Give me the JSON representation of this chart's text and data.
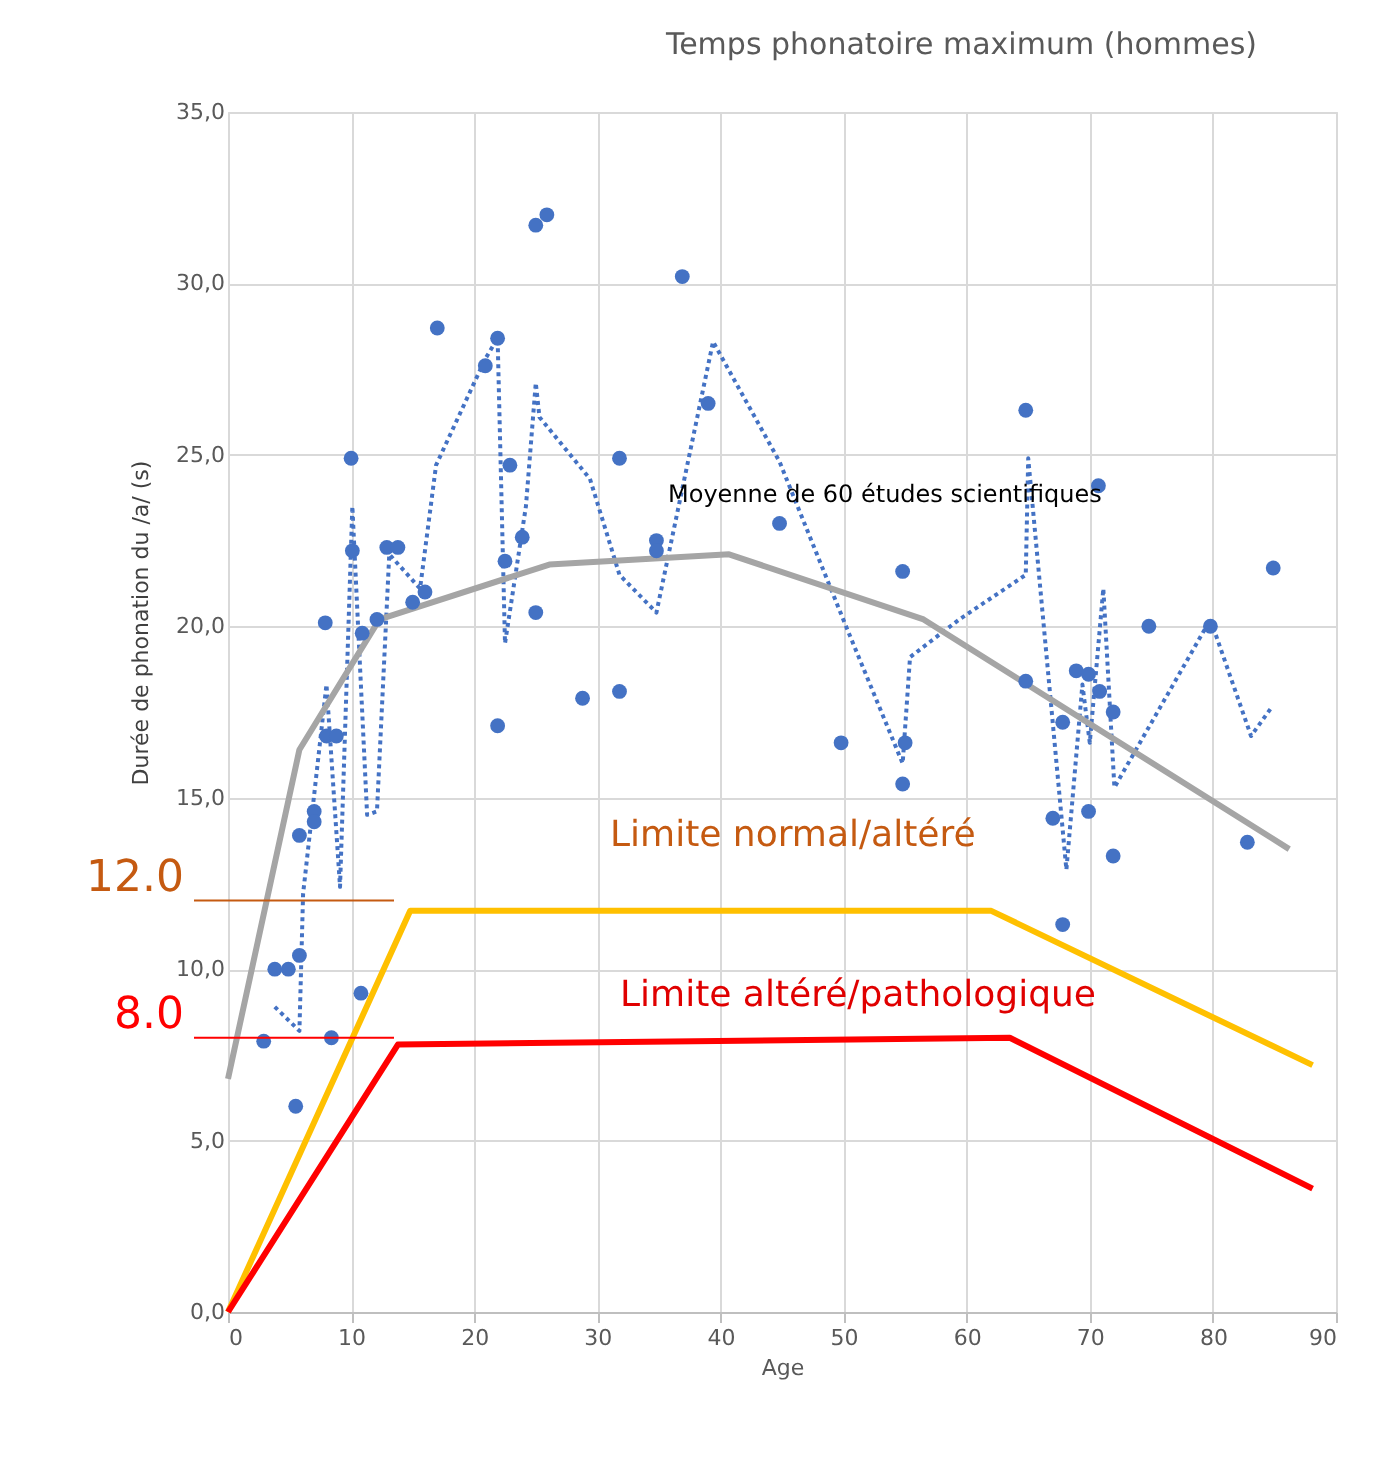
{
  "chart_data": {
    "type": "scatter",
    "title": "Temps phonatoire maximum (hommes)",
    "xlabel": "Age",
    "ylabel": "Durée de phonation du /a/ (s)",
    "series": [
      {
        "color": "#4472c4",
        "marker": "circle",
        "x": [
          25.0,
          25.9,
          17.0,
          21.9,
          20.9,
          10.0,
          22.9,
          23.9,
          10.1,
          22.5,
          12.9,
          13.8,
          16.0,
          15.0,
          12.1,
          10.9,
          7.9,
          25.0,
          28.8,
          21.9,
          8.0,
          8.8,
          7.0,
          7.0,
          5.8,
          5.8,
          3.8,
          4.9,
          10.8,
          2.9,
          8.4,
          5.5,
          36.9,
          39.0,
          31.8,
          44.8,
          34.8,
          34.8,
          54.8,
          31.8,
          49.8,
          55.0,
          54.8,
          64.8,
          70.7,
          84.9,
          74.8,
          79.8,
          64.8,
          68.9,
          69.9,
          70.8,
          71.9,
          67.8,
          67.0,
          69.9,
          71.9,
          82.8,
          67.8
        ],
        "values": [
          31.7,
          32.0,
          28.7,
          28.4,
          27.6,
          24.9,
          24.7,
          22.6,
          22.2,
          21.9,
          22.3,
          22.3,
          21.0,
          20.7,
          20.2,
          19.8,
          20.1,
          20.4,
          17.9,
          17.1,
          16.8,
          16.8,
          14.6,
          14.3,
          13.9,
          10.4,
          10.0,
          10.0,
          9.3,
          7.9,
          8.0,
          6.0,
          30.2,
          26.5,
          24.9,
          23.0,
          22.5,
          22.2,
          21.6,
          18.1,
          16.6,
          16.6,
          15.4,
          26.3,
          24.1,
          21.7,
          20.0,
          20.0,
          18.4,
          18.7,
          18.6,
          18.1,
          17.5,
          17.2,
          14.4,
          14.6,
          13.3,
          13.7,
          11.3
        ]
      },
      {
        "type": "line",
        "color": "#4472c4",
        "line_style": "dotted",
        "x": [
          3.8,
          5.8,
          6.1,
          8.0,
          9.1,
          10.1,
          11.3,
          12.1,
          13.1,
          15.6,
          16.9,
          20.9,
          21.9,
          22.5,
          24.2,
          25.0,
          25.3,
          29.4,
          31.8,
          34.8,
          39.4,
          44.8,
          50.2,
          54.8,
          55.4,
          59.4,
          64.8,
          65.0,
          68.1,
          69.4,
          70.0,
          71.1,
          72.0,
          79.8,
          83.1,
          84.7
        ],
        "values": [
          8.9,
          8.2,
          12.2,
          18.3,
          12.4,
          23.5,
          14.5,
          14.6,
          22.1,
          21.1,
          24.7,
          27.8,
          28.4,
          19.5,
          23.5,
          27.1,
          26.1,
          24.3,
          21.5,
          20.4,
          28.3,
          24.8,
          20.0,
          16.0,
          19.1,
          20.2,
          21.5,
          24.9,
          12.9,
          18.3,
          16.6,
          21.1,
          15.3,
          20.2,
          16.8,
          17.6
        ]
      },
      {
        "type": "line",
        "color": "#a5a5a5",
        "line_style": "solid",
        "x": [
          0,
          5.8,
          12.3,
          26.1,
          40.7,
          56.5,
          86.2
        ],
        "values": [
          6.8,
          16.4,
          20.2,
          21.8,
          22.1,
          20.2,
          13.5
        ]
      },
      {
        "type": "line",
        "color": "#ffc000",
        "line_style": "solid",
        "x": [
          0,
          14.8,
          62,
          88.1
        ],
        "values": [
          0,
          11.7,
          11.7,
          7.2
        ]
      },
      {
        "type": "line",
        "color": "#ff0000",
        "line_style": "solid",
        "x": [
          0,
          13.8,
          63.5,
          88.1
        ],
        "values": [
          0,
          7.8,
          8.0,
          3.6
        ]
      }
    ],
    "ref_lines": [
      {
        "axis": "y",
        "value": 12.0,
        "label": "12.0",
        "color": "#c55a11"
      },
      {
        "axis": "y",
        "value": 8.0,
        "label": "8.0",
        "color": "#ff0000"
      }
    ],
    "annotations": [
      "Moyenne de 60 études scientifiques",
      "Limite normal/altéré",
      "Limite altéré/pathologique"
    ],
    "xlim": [
      0,
      90
    ],
    "xticks": [
      0,
      10,
      20,
      30,
      40,
      50,
      60,
      70,
      80,
      90
    ],
    "ylim": [
      0,
      35
    ],
    "yticks": [
      {
        "value": 0,
        "label": "0,0"
      },
      {
        "value": 5,
        "label": "5,0"
      },
      {
        "value": 10,
        "label": "10,0"
      },
      {
        "value": 15,
        "label": "15,0"
      },
      {
        "value": 20,
        "label": "20,0"
      },
      {
        "value": 25,
        "label": "25,0"
      },
      {
        "value": 30,
        "label": "30,0"
      },
      {
        "value": 35,
        "label": "35,0"
      }
    ],
    "grid": true
  }
}
